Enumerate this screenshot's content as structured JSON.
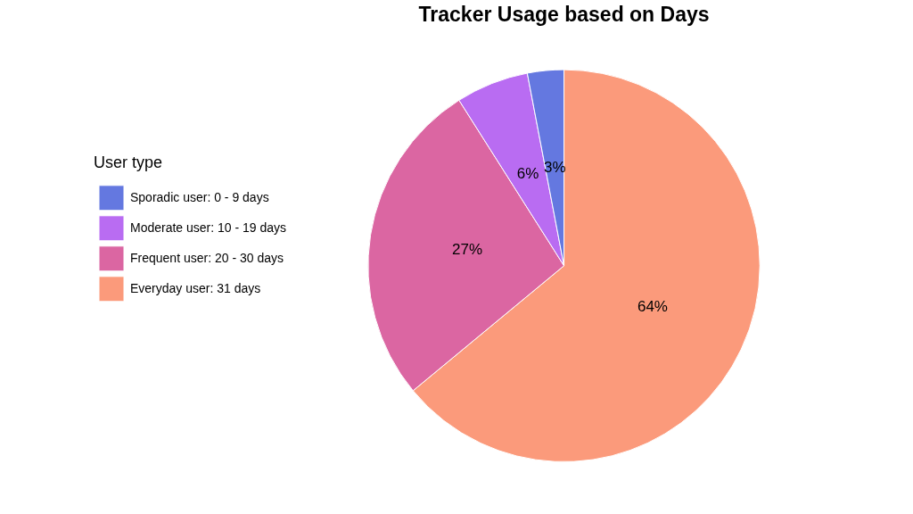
{
  "chart_data": {
    "type": "pie",
    "title": "Tracker Usage based on Days",
    "legend_title": "User type",
    "categories": [
      "Everyday user: 31 days",
      "Frequent user: 20 - 30 days",
      "Moderate user: 10 - 19 days",
      "Sporadic user: 0 - 9 days"
    ],
    "values": [
      64,
      27,
      6,
      3
    ],
    "value_labels": [
      "64%",
      "27%",
      "6%",
      "3%"
    ],
    "colors": [
      "#fb9a7b",
      "#db66a2",
      "#b96cf2",
      "#6478e0"
    ],
    "legend": "left",
    "data_labels": true
  }
}
